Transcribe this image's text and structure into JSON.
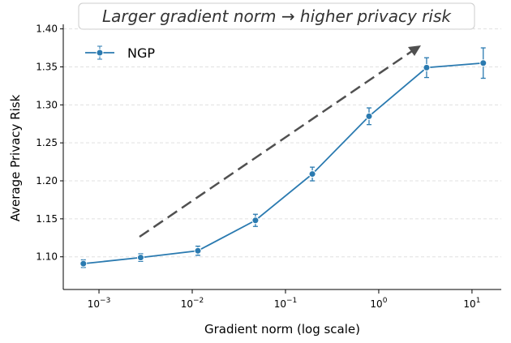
{
  "chart_data": {
    "type": "line",
    "title": "Larger gradient norm → higher privacy risk",
    "x_label": "Gradient norm (log scale)",
    "y_label": "Average Privacy Risk",
    "x": [
      0.00068,
      0.0028,
      0.0115,
      0.0476,
      0.194,
      0.787,
      3.26,
      13.2
    ],
    "series": [
      {
        "name": "NGP",
        "color": "#2a7ab0",
        "values": [
          1.091,
          1.099,
          1.108,
          1.148,
          1.209,
          1.285,
          1.349,
          1.355
        ],
        "errors": [
          0.005,
          0.005,
          0.006,
          0.008,
          0.009,
          0.011,
          0.013,
          0.02
        ]
      }
    ],
    "xlim": [
      0.000414,
      20.6
    ],
    "x_log": true,
    "xticks": [
      {
        "value": 0.001,
        "label": "10",
        "exponent": "−3"
      },
      {
        "value": 0.01,
        "label": "10",
        "exponent": "−2"
      },
      {
        "value": 0.1,
        "label": "10",
        "exponent": "−1"
      },
      {
        "value": 1,
        "label": "10",
        "exponent": "0"
      },
      {
        "value": 10,
        "label": "10",
        "exponent": "1"
      }
    ],
    "ylim": [
      1.057,
      1.406
    ],
    "yticks": [
      {
        "value": 1.1,
        "label": "1.10"
      },
      {
        "value": 1.15,
        "label": "1.15"
      },
      {
        "value": 1.2,
        "label": "1.20"
      },
      {
        "value": 1.25,
        "label": "1.25"
      },
      {
        "value": 1.3,
        "label": "1.30"
      },
      {
        "value": 1.35,
        "label": "1.35"
      },
      {
        "value": 1.4,
        "label": "1.40"
      }
    ],
    "grid": true,
    "legend": "upper left"
  }
}
